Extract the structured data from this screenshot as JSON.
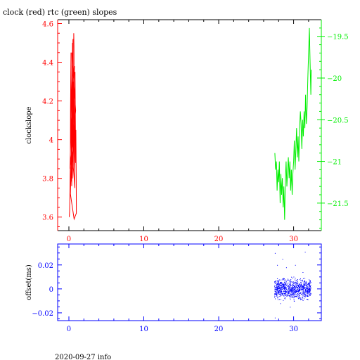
{
  "header": {
    "title": "clock (red) rtc (green) slopes"
  },
  "footer": {
    "text": "2020-09-27 info"
  },
  "colors": {
    "red": "#ff0000",
    "green": "#00ee00",
    "blue": "#0000ff",
    "axis": "#000000"
  },
  "chart_data": [
    {
      "type": "line",
      "title": "clock (red) rtc (green) slopes",
      "xlabel": "",
      "ylabel": "clockslope",
      "xlim": [
        -1.5,
        33.7
      ],
      "ylim": [
        3.53,
        4.62
      ],
      "y2lim": [
        -21.83,
        -19.3
      ],
      "xticks": [
        0,
        10,
        20,
        30
      ],
      "yticks": [
        3.6,
        3.8,
        4,
        4.2,
        4.4,
        4.6
      ],
      "y2ticks": [
        -19.5,
        -20,
        -20.5,
        -21,
        -21.5
      ],
      "ytick_labels": [
        "3.6",
        "3.8",
        "4",
        "4.2",
        "4.4",
        "4.6"
      ],
      "y2tick_labels": [
        "−19.5",
        "−20",
        "−20.5",
        "−21",
        "−21.5"
      ],
      "xtick_labels": [
        "0",
        "10",
        "20",
        "30"
      ],
      "grid": false,
      "series": [
        {
          "axis": "left",
          "color": "#ff0000",
          "points": [
            [
              0.05,
              3.6
            ],
            [
              0.1,
              3.63
            ],
            [
              0.15,
              3.75
            ],
            [
              0.2,
              3.9
            ],
            [
              0.22,
              4.15
            ],
            [
              0.25,
              4.3
            ],
            [
              0.28,
              4.45
            ],
            [
              0.3,
              4.2
            ],
            [
              0.33,
              3.95
            ],
            [
              0.35,
              3.8
            ],
            [
              0.38,
              3.76
            ],
            [
              0.4,
              3.85
            ],
            [
              0.42,
              4.05
            ],
            [
              0.45,
              4.35
            ],
            [
              0.48,
              4.5
            ],
            [
              0.5,
              4.4
            ],
            [
              0.52,
              4.1
            ],
            [
              0.55,
              3.9
            ],
            [
              0.58,
              3.85
            ],
            [
              0.6,
              4.0
            ],
            [
              0.62,
              4.25
            ],
            [
              0.65,
              4.55
            ],
            [
              0.68,
              4.48
            ],
            [
              0.7,
              4.2
            ],
            [
              0.72,
              3.95
            ],
            [
              0.75,
              3.82
            ],
            [
              0.78,
              3.9
            ],
            [
              0.8,
              4.1
            ],
            [
              0.82,
              4.35
            ],
            [
              0.85,
              4.2
            ],
            [
              0.88,
              4.0
            ],
            [
              0.9,
              3.88
            ],
            [
              0.93,
              4.05
            ],
            [
              0.95,
              3.95
            ],
            [
              0.98,
              3.8
            ],
            [
              1.0,
              3.62
            ],
            [
              0.7,
              3.59
            ],
            [
              0.2,
              3.72
            ],
            [
              0.6,
              4.3
            ],
            [
              0.3,
              4.0
            ],
            [
              0.8,
              3.75
            ],
            [
              0.4,
              4.45
            ],
            [
              0.9,
              4.15
            ],
            [
              0.15,
              3.85
            ],
            [
              0.55,
              4.52
            ],
            [
              0.35,
              3.9
            ],
            [
              0.75,
              4.38
            ],
            [
              0.25,
              3.78
            ],
            [
              0.65,
              4.0
            ],
            [
              0.45,
              3.8
            ]
          ]
        },
        {
          "axis": "right",
          "color": "#00ee00",
          "points": [
            [
              27.5,
              -20.9
            ],
            [
              27.6,
              -21.1
            ],
            [
              27.7,
              -21.0
            ],
            [
              27.8,
              -21.35
            ],
            [
              27.9,
              -21.1
            ],
            [
              28.0,
              -21.25
            ],
            [
              28.1,
              -21.0
            ],
            [
              28.2,
              -21.5
            ],
            [
              28.3,
              -21.15
            ],
            [
              28.4,
              -21.4
            ],
            [
              28.5,
              -21.2
            ],
            [
              28.6,
              -21.55
            ],
            [
              28.7,
              -21.3
            ],
            [
              28.8,
              -21.7
            ],
            [
              28.9,
              -21.2
            ],
            [
              29.0,
              -21.0
            ],
            [
              29.1,
              -21.3
            ],
            [
              29.2,
              -21.1
            ],
            [
              29.3,
              -20.95
            ],
            [
              29.4,
              -21.2
            ],
            [
              29.5,
              -21.0
            ],
            [
              29.6,
              -21.35
            ],
            [
              29.7,
              -21.1
            ],
            [
              29.8,
              -21.4
            ],
            [
              29.9,
              -21.15
            ],
            [
              30.0,
              -21.0
            ],
            [
              30.1,
              -20.75
            ],
            [
              30.2,
              -21.1
            ],
            [
              30.3,
              -20.85
            ],
            [
              30.4,
              -20.6
            ],
            [
              30.5,
              -20.95
            ],
            [
              30.6,
              -20.7
            ],
            [
              30.7,
              -21.0
            ],
            [
              30.8,
              -20.6
            ],
            [
              30.9,
              -20.4
            ],
            [
              31.0,
              -20.55
            ],
            [
              31.1,
              -20.85
            ],
            [
              31.2,
              -20.5
            ],
            [
              31.3,
              -20.7
            ],
            [
              31.4,
              -20.4
            ],
            [
              31.5,
              -20.6
            ],
            [
              31.6,
              -20.2
            ],
            [
              31.7,
              -20.55
            ],
            [
              31.8,
              -20.35
            ],
            [
              31.9,
              -20.0
            ],
            [
              32.0,
              -19.7
            ],
            [
              32.1,
              -19.4
            ],
            [
              32.2,
              -19.8
            ],
            [
              32.3,
              -20.2
            ],
            [
              32.35,
              -19.9
            ]
          ]
        }
      ]
    },
    {
      "type": "scatter",
      "xlabel": "",
      "ylabel": "offset(ms)",
      "xlim": [
        -1.5,
        33.7
      ],
      "ylim": [
        -0.0265,
        0.0375
      ],
      "xticks": [
        0,
        10,
        20,
        30
      ],
      "yticks": [
        0.02,
        0,
        -0.02
      ],
      "xtick_labels": [
        "0",
        "10",
        "20",
        "30"
      ],
      "ytick_labels": [
        "0.02",
        "0",
        "−0.02"
      ],
      "grid": false,
      "series": [
        {
          "color": "#0000ff",
          "x_range": [
            27.4,
            32.3
          ],
          "center": 0.0,
          "spread": 0.006,
          "outliers": [
            [
              27.5,
              0.03
            ],
            [
              27.5,
              -0.024
            ],
            [
              27.8,
              0.02
            ],
            [
              28.5,
              0.025
            ],
            [
              29.0,
              0.018
            ],
            [
              29.5,
              -0.015
            ],
            [
              30.2,
              0.02
            ],
            [
              31.2,
              0.014
            ],
            [
              31.5,
              0.031
            ],
            [
              28.2,
              -0.012
            ]
          ]
        }
      ]
    }
  ]
}
